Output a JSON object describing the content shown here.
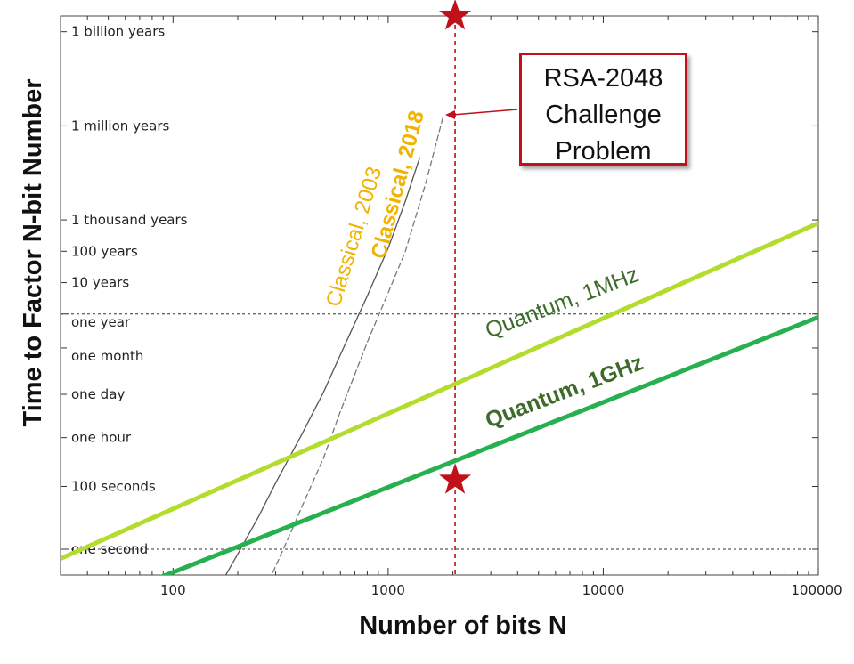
{
  "chart_data": {
    "type": "line",
    "xlabel": "Number of bits N",
    "ylabel": "Time to Factor N-bit Number",
    "x_scale": "log",
    "x_range": [
      30,
      100000
    ],
    "x_ticks": [
      {
        "value": 100,
        "label": "100"
      },
      {
        "value": 1000,
        "label": "1000"
      },
      {
        "value": 10000,
        "label": "10000"
      },
      {
        "value": 100000,
        "label": "100000"
      }
    ],
    "y_scale": "log",
    "y_unit": "seconds",
    "y_range": [
      0.15,
      1e+17
    ],
    "y_ticks": [
      {
        "value": 3.15e+16,
        "label": "1 billion years"
      },
      {
        "value": 31500000000000.0,
        "label": "1 million years"
      },
      {
        "value": 31500000000.0,
        "label": "1 thousand years"
      },
      {
        "value": 3150000000.0,
        "label": "100 years"
      },
      {
        "value": 315000000.0,
        "label": "10 years"
      },
      {
        "value": 31500000.0,
        "label": "one year"
      },
      {
        "value": 2600000.0,
        "label": "one month"
      },
      {
        "value": 86400,
        "label": "one day"
      },
      {
        "value": 3600,
        "label": "one hour"
      },
      {
        "value": 100,
        "label": "100 seconds"
      },
      {
        "value": 1,
        "label": "one second"
      }
    ],
    "reference_lines_y": [
      31500000,
      1
    ],
    "reference_line_x": 2048,
    "series": [
      {
        "name": "Classical, 2003",
        "style": "solid",
        "color": "#555555",
        "x": [
          170,
          200,
          250,
          300,
          400,
          500,
          600,
          800,
          1000,
          1200,
          1400
        ],
        "y": [
          0.1,
          0.7,
          11,
          130,
          5000,
          100000,
          1600000.0,
          120000000.0,
          4000000000.0,
          120000000000.0,
          3000000000000.0
        ]
      },
      {
        "name": "Classical, 2018",
        "style": "dashed",
        "color": "#777777",
        "x": [
          280,
          350,
          400,
          500,
          600,
          800,
          1000,
          1200,
          1500,
          1800
        ],
        "y": [
          0.1,
          3,
          25,
          800,
          25000,
          4000000.0,
          150000000.0,
          3000000000.0,
          500000000000.0,
          60000000000000.0
        ]
      },
      {
        "name": "Quantum, 1MHz",
        "style": "solid",
        "color": "#b3dd2c",
        "x": [
          30,
          100000
        ],
        "y": [
          0.5,
          25000000000.0
        ]
      },
      {
        "name": "Quantum, 1GHz",
        "style": "solid",
        "color": "#27b04f",
        "x": [
          80,
          100000
        ],
        "y": [
          0.1,
          25000000.0
        ]
      }
    ],
    "markers": [
      {
        "shape": "star",
        "color": "#c0111b",
        "x": 2048,
        "y": 160
      },
      {
        "shape": "star",
        "color": "#c0111b",
        "x": 2048,
        "y": 1e+17
      }
    ],
    "labels": {
      "classical_2003": "Classical, 2003",
      "classical_2018": "Classical, 2018",
      "quantum_1mhz": "Quantum, 1MHz",
      "quantum_1ghz": "Quantum, 1GHz"
    },
    "annotation": {
      "lines": [
        "RSA-2048",
        "Challenge",
        "Problem"
      ]
    },
    "colors": {
      "classical_label": "#f0b400",
      "quantum_1mhz_label": "#3c6b2a",
      "quantum_1ghz_label": "#3c6b2a",
      "rsa_line": "#c0111b"
    }
  }
}
